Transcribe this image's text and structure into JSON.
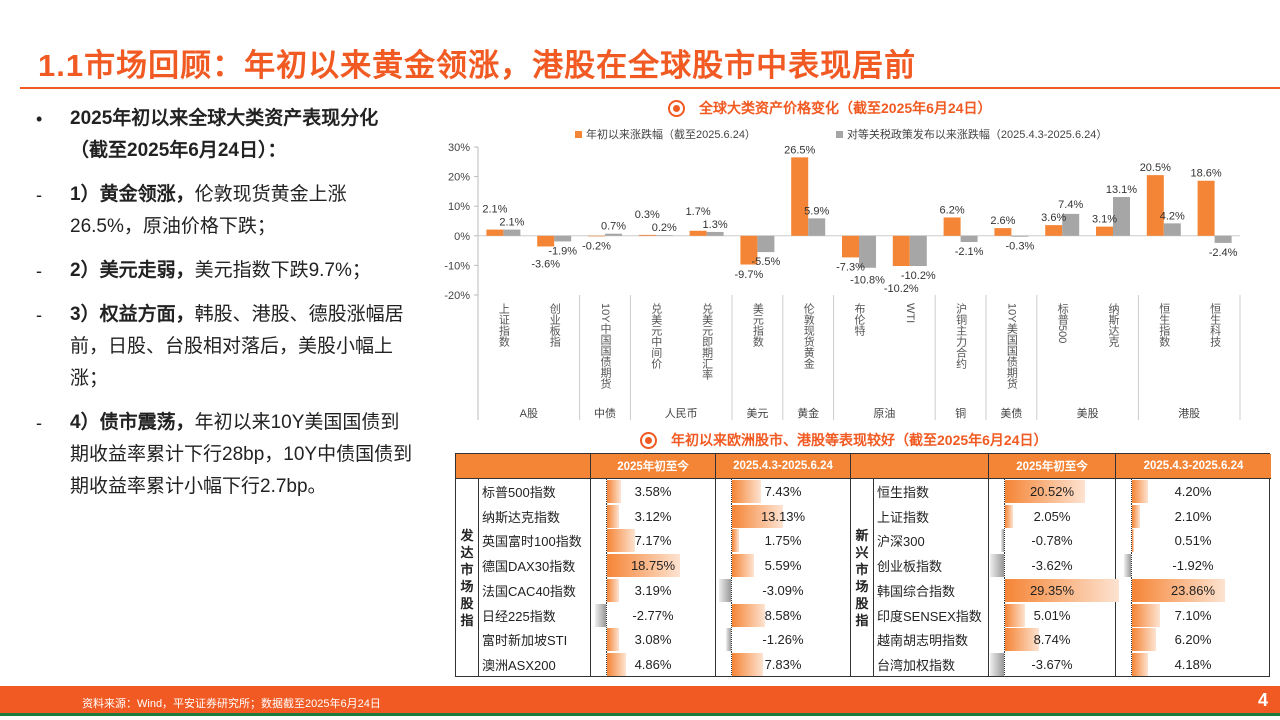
{
  "title": "1.1市场回顾：年初以来黄金领涨，港股在全球股市中表现居前",
  "left": {
    "intro": "2025年初以来全球大类资产表现分化（截至2025年6月24日）：",
    "points": [
      {
        "bold": "1）黄金领涨，",
        "text": "伦敦现货黄金上涨26.5%，原油价格下跌；"
      },
      {
        "bold": "2）美元走弱，",
        "text": "美元指数下跌9.7%；"
      },
      {
        "bold": "3）权益方面，",
        "text": "韩股、港股、德股涨幅居前，日股、台股相对落后，美股小幅上涨；"
      },
      {
        "bold": "4）债市震荡，",
        "text": "年初以来10Y美国国债到期收益率累计下行28bp，10Y中债国债到期收益率累计小幅下行2.7bp。"
      }
    ]
  },
  "chart_title": "全球大类资产价格变化（截至2025年6月24日）",
  "chart_data": {
    "type": "bar",
    "categories": [
      "上证指数",
      "创业板指",
      "10Y中国国债期货",
      "兑美元中间价",
      "兑美元即期汇率",
      "美元指数",
      "伦敦现货黄金",
      "布伦特",
      "WTI",
      "沪铜主力合约",
      "10Y美国国债期货",
      "标普500",
      "纳斯达克",
      "恒生指数",
      "恒生科技"
    ],
    "groups": [
      {
        "name": "A股",
        "count": 2
      },
      {
        "name": "中债",
        "count": 1
      },
      {
        "name": "人民币",
        "count": 2
      },
      {
        "name": "美元",
        "count": 1
      },
      {
        "name": "黄金",
        "count": 1
      },
      {
        "name": "原油",
        "count": 2
      },
      {
        "name": "铜",
        "count": 1
      },
      {
        "name": "美债",
        "count": 1
      },
      {
        "name": "美股",
        "count": 2
      },
      {
        "name": "港股",
        "count": 2
      }
    ],
    "series": [
      {
        "name": "年初以来涨跌幅（截至2025.6.24）",
        "color": "#F58536",
        "values": [
          2.1,
          -3.6,
          -0.2,
          0.3,
          1.7,
          -9.7,
          26.5,
          -7.3,
          -10.2,
          6.2,
          2.6,
          3.6,
          3.1,
          20.5,
          18.6
        ]
      },
      {
        "name": "对等关税政策发布以来涨跌幅（2025.4.3-2025.6.24）",
        "color": "#A6A6A6",
        "values": [
          2.1,
          -1.9,
          0.7,
          0.2,
          1.3,
          -5.5,
          5.9,
          -10.8,
          -10.2,
          -2.1,
          -0.3,
          7.4,
          13.1,
          4.2,
          -2.4
        ]
      }
    ],
    "ylim": [
      -20,
      30
    ],
    "yticks": [
      "30%",
      "20%",
      "10%",
      "0%",
      "-10%",
      "-20%"
    ],
    "unit": "%",
    "grid": false,
    "legend": "top"
  },
  "table_title": "年初以来欧洲股市、港股等表现较好（截至2025年6月24日）",
  "table": {
    "headers": [
      "2025年初至今",
      "2025.4.3-2025.6.24"
    ],
    "blocks": [
      {
        "label": "发达市场股指",
        "rows": [
          {
            "name": "标普500指数",
            "ytd": 3.58,
            "since": 7.43
          },
          {
            "name": "纳斯达克指数",
            "ytd": 3.12,
            "since": 13.13
          },
          {
            "name": "英国富时100指数",
            "ytd": 7.17,
            "since": 1.75
          },
          {
            "name": "德国DAX30指数",
            "ytd": 18.75,
            "since": 5.59
          },
          {
            "name": "法国CAC40指数",
            "ytd": 3.19,
            "since": -3.09
          },
          {
            "name": "日经225指数",
            "ytd": -2.77,
            "since": 8.58
          },
          {
            "name": "富时新加坡STI",
            "ytd": 3.08,
            "since": -1.26
          },
          {
            "name": "澳洲ASX200",
            "ytd": 4.86,
            "since": 7.83
          }
        ]
      },
      {
        "label": "新兴市场股指",
        "rows": [
          {
            "name": "恒生指数",
            "ytd": 20.52,
            "since": 4.2
          },
          {
            "name": "上证指数",
            "ytd": 2.05,
            "since": 2.1
          },
          {
            "name": "沪深300",
            "ytd": -0.78,
            "since": 0.51
          },
          {
            "name": "创业板指数",
            "ytd": -3.62,
            "since": -1.92
          },
          {
            "name": "韩国综合指数",
            "ytd": 29.35,
            "since": 23.86
          },
          {
            "name": "印度SENSEX指数",
            "ytd": 5.01,
            "since": 7.1
          },
          {
            "name": "越南胡志明指数",
            "ytd": 8.74,
            "since": 6.2
          },
          {
            "name": "台湾加权指数",
            "ytd": -3.67,
            "since": 4.18
          }
        ]
      }
    ]
  },
  "footer": {
    "source": "资料来源：Wind，平安证券研究所；数据截至2025年6月24日",
    "page": "4"
  },
  "colors": {
    "accent": "#F15A22",
    "orange": "#F58536",
    "gray": "#A6A6A6",
    "footer_line": "#1E7A3C"
  }
}
